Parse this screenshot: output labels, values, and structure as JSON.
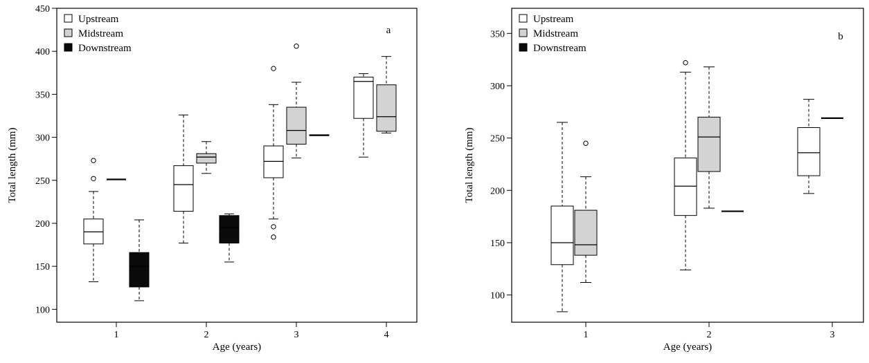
{
  "chart_data": [
    {
      "type": "boxplot",
      "panel_label": "a",
      "xlabel": "Age (years)",
      "ylabel": "Total length (mm)",
      "categories": [
        "1",
        "2",
        "3",
        "4"
      ],
      "ylim": [
        85,
        450
      ],
      "yticks": [
        100,
        150,
        200,
        250,
        300,
        350,
        400,
        450
      ],
      "legend_position": "top-left",
      "series": [
        {
          "name": "Upstream",
          "color": "#ffffff",
          "boxes": [
            {
              "category": "1",
              "whisker_low": 132,
              "q1": 176,
              "median": 190,
              "q3": 205,
              "whisker_high": 237,
              "outliers": [
                252,
                273
              ]
            },
            {
              "category": "2",
              "whisker_low": 177,
              "q1": 214,
              "median": 245,
              "q3": 267,
              "whisker_high": 326,
              "outliers": []
            },
            {
              "category": "3",
              "whisker_low": 205,
              "q1": 253,
              "median": 272,
              "q3": 290,
              "whisker_high": 338,
              "outliers": [
                380,
                196,
                184
              ]
            },
            {
              "category": "4",
              "whisker_low": 277,
              "q1": 322,
              "median": 365,
              "q3": 370,
              "whisker_high": 374,
              "outliers": []
            }
          ]
        },
        {
          "name": "Midstream",
          "color": "#d3d3d3",
          "boxes": [
            {
              "category": "1",
              "whisker_low": 251,
              "q1": 251,
              "median": 251,
              "q3": 251,
              "whisker_high": 251,
              "outliers": []
            },
            {
              "category": "2",
              "whisker_low": 258,
              "q1": 270,
              "median": 277,
              "q3": 281,
              "whisker_high": 295,
              "outliers": []
            },
            {
              "category": "3",
              "whisker_low": 276,
              "q1": 292,
              "median": 308,
              "q3": 335,
              "whisker_high": 364,
              "outliers": [
                406
              ]
            },
            {
              "category": "4",
              "whisker_low": 305,
              "q1": 307,
              "median": 324,
              "q3": 361,
              "whisker_high": 394,
              "outliers": []
            }
          ]
        },
        {
          "name": "Downstream",
          "color": "#0a0a0a",
          "boxes": [
            {
              "category": "1",
              "whisker_low": 110,
              "q1": 126,
              "median": 150,
              "q3": 166,
              "whisker_high": 204,
              "outliers": []
            },
            {
              "category": "2",
              "whisker_low": 155,
              "q1": 177,
              "median": 195,
              "q3": 209,
              "whisker_high": 211,
              "outliers": []
            },
            {
              "category": "3",
              "whisker_low": 302,
              "q1": 302,
              "median": 302,
              "q3": 303,
              "whisker_high": 303,
              "outliers": []
            }
          ]
        }
      ]
    },
    {
      "type": "boxplot",
      "panel_label": "b",
      "xlabel": "Age (years)",
      "ylabel": "Total length (mm)",
      "categories": [
        "1",
        "2",
        "3"
      ],
      "ylim": [
        74,
        374
      ],
      "yticks": [
        100,
        150,
        200,
        250,
        300,
        350
      ],
      "legend_position": "top-left",
      "series": [
        {
          "name": "Upstream",
          "color": "#ffffff",
          "boxes": [
            {
              "category": "1",
              "whisker_low": 84,
              "q1": 129,
              "median": 150,
              "q3": 185,
              "whisker_high": 265,
              "outliers": []
            },
            {
              "category": "2",
              "whisker_low": 124,
              "q1": 176,
              "median": 204,
              "q3": 231,
              "whisker_high": 313,
              "outliers": [
                322
              ]
            },
            {
              "category": "3",
              "whisker_low": 197,
              "q1": 214,
              "median": 236,
              "q3": 260,
              "whisker_high": 287,
              "outliers": []
            }
          ]
        },
        {
          "name": "Midstream",
          "color": "#d3d3d3",
          "boxes": [
            {
              "category": "1",
              "whisker_low": 112,
              "q1": 138,
              "median": 148,
              "q3": 181,
              "whisker_high": 213,
              "outliers": [
                245
              ]
            },
            {
              "category": "2",
              "whisker_low": 183,
              "q1": 218,
              "median": 251,
              "q3": 270,
              "whisker_high": 318,
              "outliers": []
            },
            {
              "category": "3",
              "whisker_low": 269,
              "q1": 269,
              "median": 269,
              "q3": 269,
              "whisker_high": 269,
              "outliers": []
            }
          ]
        },
        {
          "name": "Downstream",
          "color": "#0a0a0a",
          "boxes": [
            {
              "category": "2",
              "whisker_low": 180,
              "q1": 180,
              "median": 180,
              "q3": 180,
              "whisker_high": 180,
              "outliers": []
            }
          ]
        }
      ]
    }
  ]
}
